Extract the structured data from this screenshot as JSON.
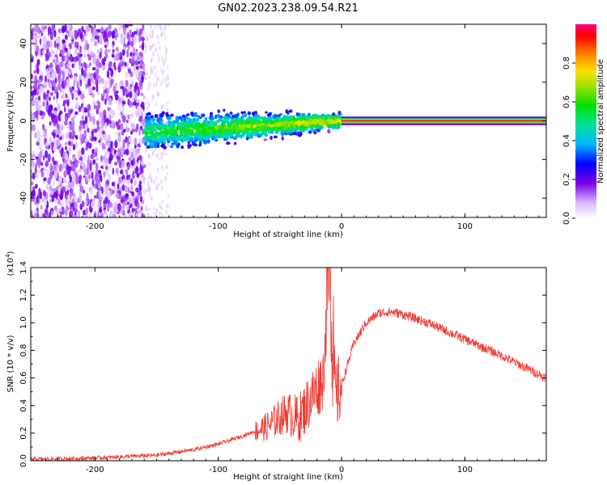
{
  "chart_data": [
    {
      "type": "heatmap",
      "title": "GN02.2023.238.09.54.R21",
      "xlabel": "Height of straight line (km)",
      "ylabel": "Frequency (Hz)",
      "xlim": [
        -252,
        166
      ],
      "ylim": [
        -50,
        50
      ],
      "xticks": [
        -200,
        -100,
        0,
        100
      ],
      "xtick_labels": [
        "-200",
        "-100",
        "0",
        "100"
      ],
      "yticks": [
        -40,
        -20,
        0,
        20,
        40
      ],
      "ytick_labels": [
        "-40",
        "-20",
        "0",
        "20",
        "40"
      ],
      "colorbar": {
        "label": "Normalized spectral amplitude",
        "range": [
          0,
          1
        ],
        "ticks": [
          0,
          0.2,
          0.4,
          0.6,
          0.8
        ],
        "tick_labels": [
          "0.0",
          "0.2",
          "0.4",
          "0.6",
          "0.8"
        ]
      },
      "regions": [
        {
          "name": "noise",
          "x_range": [
            -252,
            -160
          ],
          "freq_range": [
            -50,
            50
          ],
          "amplitude": 0.15
        },
        {
          "name": "diffuse-band",
          "x_range": [
            -160,
            -140
          ],
          "freq_range": [
            -50,
            50
          ],
          "amplitude": 0.05
        },
        {
          "name": "signal-cloud",
          "x_range": [
            -160,
            0
          ],
          "freq_center": [
            -6,
            0
          ],
          "freq_halfwidth": [
            8,
            3
          ],
          "amplitude": 0.35
        },
        {
          "name": "tracked-line",
          "x_range": [
            0,
            166
          ],
          "freq": 0,
          "amplitude": 0.95
        }
      ]
    },
    {
      "type": "line",
      "xlabel": "Height of straight line (km)",
      "ylabel": "SNR (10 * v/v)",
      "y_multiplier": "(x10",
      "y_multiplier_exp": "4",
      "y_multiplier_close": ")",
      "xlim": [
        -252,
        166
      ],
      "ylim": [
        0,
        1.4
      ],
      "xticks": [
        -200,
        -100,
        0,
        100
      ],
      "xtick_labels": [
        "-200",
        "-100",
        "0",
        "100"
      ],
      "yticks": [
        0,
        0.2,
        0.4,
        0.6,
        0.8,
        1.0,
        1.2,
        1.4
      ],
      "ytick_labels": [
        "0.0",
        "0.2",
        "0.4",
        "0.6",
        "0.8",
        "1.0",
        "1.2",
        "1.4"
      ],
      "series": [
        {
          "name": "SNR",
          "color": "#ee3a34",
          "x": [
            -252,
            -200,
            -150,
            -120,
            -100,
            -80,
            -60,
            -45,
            -35,
            -25,
            -15,
            -10,
            -5,
            0,
            10,
            20,
            30,
            40,
            50,
            70,
            100,
            130,
            166
          ],
          "y": [
            0.01,
            0.02,
            0.04,
            0.08,
            0.12,
            0.18,
            0.25,
            0.35,
            0.3,
            0.45,
            0.6,
            1.4,
            0.45,
            0.55,
            0.85,
            1.0,
            1.07,
            1.08,
            1.06,
            1.0,
            0.88,
            0.76,
            0.6
          ]
        }
      ]
    }
  ],
  "colors": {
    "line": "#ee3a34",
    "axis": "#000000"
  }
}
